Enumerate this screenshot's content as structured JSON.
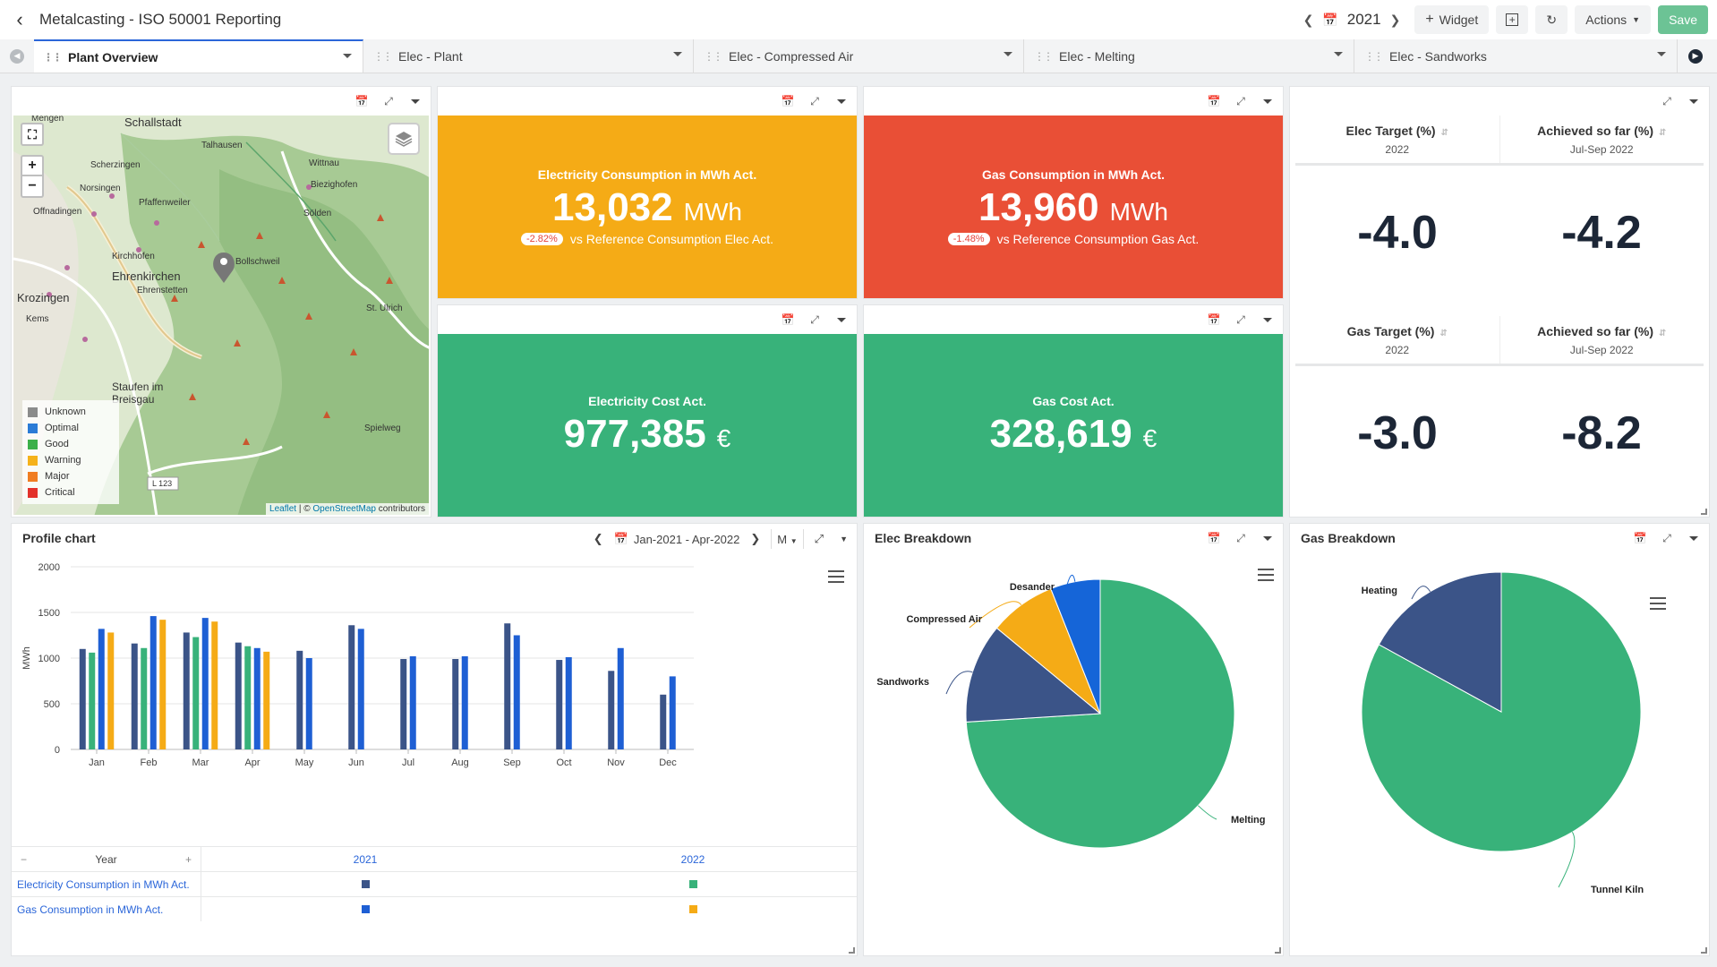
{
  "header": {
    "title": "Metalcasting - ISO 50001 Reporting",
    "year": "2021",
    "widget_label": "Widget",
    "actions_label": "Actions",
    "save_label": "Save"
  },
  "tabs": [
    {
      "label": "Plant Overview",
      "active": true
    },
    {
      "label": "Elec - Plant",
      "active": false
    },
    {
      "label": "Elec - Compressed Air",
      "active": false
    },
    {
      "label": "Elec - Melting",
      "active": false
    },
    {
      "label": "Elec - Sandworks",
      "active": false
    }
  ],
  "map": {
    "places": [
      {
        "name": "Mengen"
      },
      {
        "name": "Schallstadt"
      },
      {
        "name": "Talhausen"
      },
      {
        "name": "Scherzingen"
      },
      {
        "name": "Wittnau"
      },
      {
        "name": "Norsingen"
      },
      {
        "name": "Biezighofen"
      },
      {
        "name": "Pfaffenweiler"
      },
      {
        "name": "Offnadingen"
      },
      {
        "name": "Sölden"
      },
      {
        "name": "Kirchhofen"
      },
      {
        "name": "Bollschweil"
      },
      {
        "name": "Ehrenkirchen"
      },
      {
        "name": "Ehrenstetten"
      },
      {
        "name": "St. Ulrich"
      },
      {
        "name": "Krozingen"
      },
      {
        "name": "Kems"
      },
      {
        "name": "Staufen im Breisgau"
      },
      {
        "name": "Spielweg"
      },
      {
        "name": "L 123"
      }
    ],
    "legend": [
      {
        "label": "Unknown",
        "color": "#8b8b8b"
      },
      {
        "label": "Optimal",
        "color": "#2b7bd6"
      },
      {
        "label": "Good",
        "color": "#3cb04a"
      },
      {
        "label": "Warning",
        "color": "#f5b21b"
      },
      {
        "label": "Major",
        "color": "#f07d22"
      },
      {
        "label": "Critical",
        "color": "#e3312b"
      }
    ],
    "attribution_leaflet": "Leaflet",
    "attribution_sep": " | © ",
    "attribution_osm": "OpenStreetMap",
    "attribution_tail": " contributors"
  },
  "kpis": {
    "elec_consumption": {
      "label": "Electricity Consumption in MWh Act.",
      "value": "13,032",
      "unit": "MWh",
      "badge": "-2.82%",
      "sub": "vs Reference Consumption Elec Act.",
      "color": "#f5ab16"
    },
    "gas_consumption": {
      "label": "Gas Consumption in MWh Act.",
      "value": "13,960",
      "unit": "MWh",
      "badge": "-1.48%",
      "sub": "vs Reference Consumption Gas Act.",
      "color": "#e94f36"
    },
    "elec_cost": {
      "label": "Electricity Cost Act.",
      "value": "977,385",
      "unit": "€",
      "color": "#38b27a"
    },
    "gas_cost": {
      "label": "Gas Cost Act.",
      "value": "328,619",
      "unit": "€",
      "color": "#38b27a"
    }
  },
  "targets": {
    "elec": {
      "col1_label": "Elec Target (%)",
      "col1_sub": "2022",
      "col2_label": "Achieved so far (%)",
      "col2_sub": "Jul-Sep 2022",
      "v1": "-4.0",
      "v2": "-4.2"
    },
    "gas": {
      "col1_label": "Gas Target (%)",
      "col1_sub": "2022",
      "col2_label": "Achieved so far (%)",
      "col2_sub": "Jul-Sep 2022",
      "v1": "-3.0",
      "v2": "-8.2"
    }
  },
  "profile": {
    "title": "Profile chart",
    "range": "Jan-2021 - Apr-2022",
    "granularity": "M",
    "table": {
      "year_label": "Year",
      "minus": "−",
      "plus": "+",
      "col_2021": "2021",
      "col_2022": "2022",
      "row1": "Electricity Consumption in MWh Act.",
      "row2": "Gas Consumption in MWh Act."
    }
  },
  "elec_breakdown": {
    "title": "Elec Breakdown"
  },
  "gas_breakdown": {
    "title": "Gas Breakdown"
  },
  "chart_data": [
    {
      "type": "bar",
      "categories": [
        "Jan",
        "Feb",
        "Mar",
        "Apr",
        "May",
        "Jun",
        "Jul",
        "Aug",
        "Sep",
        "Oct",
        "Nov",
        "Dec"
      ],
      "ylabel": "MWh",
      "ylim": [
        0,
        2000
      ],
      "yticks": [
        0,
        500,
        1000,
        1500,
        2000
      ],
      "grid": true,
      "series": [
        {
          "name": "",
          "color": "#3b5488",
          "values": [
            1100,
            1160,
            1280,
            1170,
            1080,
            1360,
            990,
            990,
            1380,
            980,
            860,
            600
          ]
        },
        {
          "name": "",
          "color": "#38b27a",
          "values": [
            1060,
            1110,
            1230,
            1130,
            null,
            null,
            null,
            null,
            null,
            null,
            null,
            null
          ]
        },
        {
          "name": "",
          "color": "#1e5fd4",
          "values": [
            1320,
            1460,
            1440,
            1110,
            1000,
            1320,
            1020,
            1020,
            1250,
            1010,
            1110,
            800
          ]
        },
        {
          "name": "",
          "color": "#f5ab16",
          "values": [
            1280,
            1420,
            1400,
            1070,
            null,
            null,
            null,
            null,
            null,
            null,
            null,
            null
          ]
        }
      ]
    },
    {
      "type": "pie",
      "title": "Elec Breakdown",
      "slices": [
        {
          "label": "Melting",
          "value": 74,
          "color": "#38b27a"
        },
        {
          "label": "Sandworks",
          "value": 12,
          "color": "#3b5488"
        },
        {
          "label": "Compressed Air",
          "value": 8,
          "color": "#f5ab16"
        },
        {
          "label": "Desander",
          "value": 6,
          "color": "#1565d8"
        }
      ]
    },
    {
      "type": "pie",
      "title": "Gas Breakdown",
      "slices": [
        {
          "label": "Tunnel Kiln",
          "value": 83,
          "color": "#38b27a"
        },
        {
          "label": "Heating",
          "value": 17,
          "color": "#3b5488"
        }
      ]
    }
  ]
}
